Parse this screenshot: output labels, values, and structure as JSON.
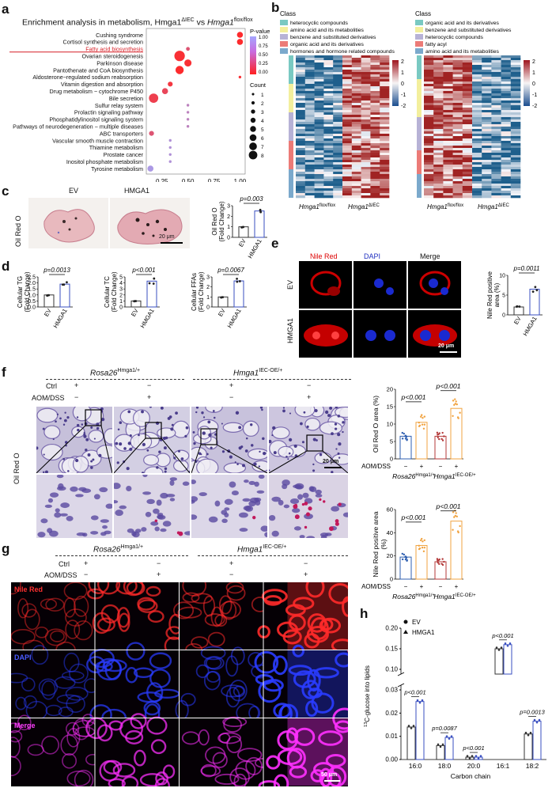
{
  "panels": {
    "a": "a",
    "b": "b",
    "c": "c",
    "d": "d",
    "e": "e",
    "f": "f",
    "g": "g",
    "h": "h"
  },
  "a": {
    "title": "Enrichment analysis in metabolism, Hmga1",
    "title_sup1": "ΔIEC",
    "title_mid": " vs ",
    "title_gene2": "Hmga1",
    "title_sup2": "flox/flox",
    "pvalue_label": "P-value",
    "pvalue_ticks": [
      "1.00",
      "0.75",
      "0.50",
      "0.25",
      "0.00"
    ],
    "count_label": "Count",
    "count_ticks": [
      "1",
      "2",
      "3",
      "4",
      "5",
      "6",
      "7",
      "8"
    ],
    "xticks": [
      "0.25",
      "0.50",
      "0.75",
      "1.00"
    ],
    "terms": [
      "Cushing syndrome",
      "Cortisol synthesis and secretion",
      "Fatty acid biosynthesis",
      "Ovarian steroidogenesis",
      "Parkinson disease",
      "Pantothenate and CoA biosynthesis",
      "Aldosterone−regulated sodium reabsorption",
      "Vitamin digestion and absorption",
      "Drug metabolism − cytochrome P450",
      "Bile secretion",
      "Sulfur relay system",
      "Prolactin signaling pathway",
      "Phosphatidylinositol signaling system",
      "Pathways of neurodegeneration − multiple diseases",
      "ABC transporters",
      "Vascular smooth muscle contraction",
      "Thiamine metabolism",
      "Prostate cancer",
      "Inositol phosphate metabolism",
      "Tyrosine metabolism"
    ],
    "highlight_color": "#d61f26"
  },
  "b": {
    "class_title": "Class",
    "left_classes": [
      "heterocyclic compounds",
      "amino acid and its metabolities",
      "benzene and substituted derivatives",
      "organic acid and its derivatives",
      "hormones and hormone related compounds"
    ],
    "right_classes": [
      "organic acid and its derivatives",
      "benzene and substituted derivatives",
      "heterocyclic compounds",
      "fatty acyl",
      "amino acid and its metabolities"
    ],
    "class_colors": [
      "#79c9c2",
      "#f3ef9d",
      "#b7b2d6",
      "#ec7b77",
      "#7ba9cc"
    ],
    "right_class_colors": [
      "#79c9c2",
      "#f3ef9d",
      "#b7b2d6",
      "#ec7b77",
      "#7ba9cc"
    ],
    "scale_ticks": [
      "2",
      "1",
      "0",
      "-1",
      "-2"
    ],
    "left_x_gene1": "Hmga1",
    "left_x_sup1": "flox/flox",
    "left_x_gene2": "Hmga1",
    "left_x_sup2": "ΔIEC",
    "right_x_gene1": "Hmga1",
    "right_x_sup1": "flox/flox",
    "right_x_gene2": "Hmga1",
    "right_x_sup2": "ΔIEC"
  },
  "c": {
    "ev": "EV",
    "hmga1": "HMGA1",
    "stain": "Oil Red O",
    "scalebar": "20 μm",
    "pval": "p=0.003",
    "ylabel1": "Oil Red O",
    "ylabel2": "(Fold Change)",
    "yticks": [
      "0",
      "1",
      "2",
      "3"
    ]
  },
  "d": {
    "charts": [
      {
        "pval": "p=0.0013",
        "ylabel1": "Cellular TG",
        "ylabel2": "(Fold Change)",
        "yticks": [
          "0.0",
          "0.5",
          "1.0",
          "1.5",
          "2.0",
          "2.5"
        ]
      },
      {
        "pval": "p<0.001",
        "ylabel1": "Cellular TC",
        "ylabel2": "(Fold Change)",
        "yticks": [
          "0",
          "1",
          "2",
          "3",
          "4",
          "5"
        ]
      },
      {
        "pval": "p=0.0067",
        "ylabel1": "Cellular FFAs",
        "ylabel2": "(Fold Change)",
        "yticks": [
          "0",
          "1",
          "2",
          "3"
        ]
      }
    ],
    "ev": "EV",
    "hmga1": "HMGA1"
  },
  "e": {
    "col1": "Nile Red",
    "col2": "DAPI",
    "col3": "Merge",
    "row1": "EV",
    "row2": "HMGA1",
    "scalebar": "20 μm",
    "pval": "p=0.0011",
    "ylabel1": "Nile Red positive",
    "ylabel2": "area (%)",
    "yticks": [
      "0",
      "5",
      "10"
    ],
    "ev": "EV",
    "hmga1": "HMGA1"
  },
  "f": {
    "rosa": "Rosa26",
    "rosa_sup": "Hmga1/+",
    "hmga": "Hmga1",
    "hmga_sup": "IEC-OE/+",
    "ctrl": "Ctrl",
    "aom": "AOM/DSS",
    "plus": "+",
    "minus": "−",
    "stain": "Oil Red O",
    "scalebar": "20 μm",
    "chart": {
      "pval1": "p<0.001",
      "pval2": "p<0.001",
      "ylabel": "Oil Red O area (%)",
      "yticks": [
        "0",
        "5",
        "10",
        "15",
        "20"
      ]
    }
  },
  "g": {
    "rosa": "Rosa26",
    "rosa_sup": "Hmga1/+",
    "hmga": "Hmga1",
    "hmga_sup": "IEC-OE/+",
    "ctrl": "Ctrl",
    "aom": "AOM/DSS",
    "plus": "+",
    "minus": "−",
    "row1": "Nile Red",
    "row2": "DAPI",
    "row3": "Merge",
    "scalebar": "50 μm",
    "chart": {
      "pval1": "p<0.001",
      "pval2": "p<0.001",
      "ylabel1": "Nile Red positive area",
      "ylabel2": "(%)",
      "yticks": [
        "0",
        "20",
        "40",
        "60"
      ]
    }
  },
  "h": {
    "legend_ev": "EV",
    "legend_hmga1": "HMGA1",
    "ylabel": "glucose into lipids",
    "ylabel_sup": "13",
    "ylabel_el": "C",
    "xlabel": "Carbon chain",
    "xticks": [
      "16:0",
      "18:0",
      "20:0",
      "16:1",
      "18:2"
    ],
    "yticks_low": [
      "0.00",
      "0.01",
      "0.02",
      "0.03"
    ],
    "yticks_high": [
      "0.10",
      "0.15",
      "0.20"
    ],
    "pvals": [
      "p<0.001",
      "p=0.0087",
      "p<0.001",
      "p<0.001",
      "p=0.0013"
    ]
  },
  "chart_data": [
    {
      "type": "scatter",
      "title": "Enrichment analysis in metabolism",
      "xlabel": "",
      "ylabel": "",
      "xlim": [
        0.1,
        1.05
      ],
      "points": [
        {
          "term": "Cushing syndrome",
          "x": 1.0,
          "count": 4,
          "p": 0.02
        },
        {
          "term": "Cortisol synthesis and secretion",
          "x": 1.0,
          "count": 4,
          "p": 0.02
        },
        {
          "term": "Fatty acid biosynthesis",
          "x": 0.5,
          "count": 2,
          "p": 0.3
        },
        {
          "term": "Ovarian steroidogenesis",
          "x": 0.42,
          "count": 8,
          "p": 0.05
        },
        {
          "term": "Parkinson disease",
          "x": 0.5,
          "count": 5,
          "p": 0.05
        },
        {
          "term": "Pantothenate and CoA biosynthesis",
          "x": 0.42,
          "count": 6,
          "p": 0.02
        },
        {
          "term": "Aldosterone−regulated sodium reabsorption",
          "x": 1.0,
          "count": 1,
          "p": 0.05
        },
        {
          "term": "Vitamin digestion and absorption",
          "x": 0.33,
          "count": 3,
          "p": 0.1
        },
        {
          "term": "Drug metabolism − cytochrome P450",
          "x": 0.28,
          "count": 4,
          "p": 0.2
        },
        {
          "term": "Bile secretion",
          "x": 0.17,
          "count": 7,
          "p": 0.15
        },
        {
          "term": "Sulfur relay system",
          "x": 0.5,
          "count": 1,
          "p": 0.6
        },
        {
          "term": "Prolactin signaling pathway",
          "x": 0.5,
          "count": 1,
          "p": 0.6
        },
        {
          "term": "Phosphatidylinositol signaling system",
          "x": 0.5,
          "count": 1,
          "p": 0.6
        },
        {
          "term": "Pathways of neurodegeneration − multiple diseases",
          "x": 0.5,
          "count": 1,
          "p": 0.6
        },
        {
          "term": "ABC transporters",
          "x": 0.15,
          "count": 3,
          "p": 0.3
        },
        {
          "term": "Vascular smooth muscle contraction",
          "x": 0.33,
          "count": 1,
          "p": 0.7
        },
        {
          "term": "Thiamine metabolism",
          "x": 0.33,
          "count": 1,
          "p": 0.7
        },
        {
          "term": "Prostate cancer",
          "x": 0.33,
          "count": 1,
          "p": 0.7
        },
        {
          "term": "Inositol phosphate metabolism",
          "x": 0.33,
          "count": 1,
          "p": 0.7
        },
        {
          "term": "Tyrosine metabolism",
          "x": 0.14,
          "count": 4,
          "p": 0.75
        }
      ]
    },
    {
      "type": "bar",
      "panel": "c",
      "categories": [
        "EV",
        "HMGA1"
      ],
      "values": [
        1.0,
        2.5
      ],
      "ylim": [
        0,
        3
      ],
      "ylabel": "Oil Red O (Fold Change)"
    },
    {
      "type": "bar",
      "panel": "d-TG",
      "categories": [
        "EV",
        "HMGA1"
      ],
      "values": [
        1.0,
        1.9
      ],
      "ylim": [
        0,
        2.5
      ],
      "ylabel": "Cellular TG (Fold Change)"
    },
    {
      "type": "bar",
      "panel": "d-TC",
      "categories": [
        "EV",
        "HMGA1"
      ],
      "values": [
        1.0,
        4.3
      ],
      "ylim": [
        0,
        5
      ],
      "ylabel": "Cellular TC (Fold Change)"
    },
    {
      "type": "bar",
      "panel": "d-FFA",
      "categories": [
        "EV",
        "HMGA1"
      ],
      "values": [
        1.0,
        2.6
      ],
      "ylim": [
        0,
        3
      ],
      "ylabel": "Cellular FFAs (Fold Change)"
    },
    {
      "type": "bar",
      "panel": "e",
      "categories": [
        "EV",
        "HMGA1"
      ],
      "values": [
        2.0,
        6.5
      ],
      "ylim": [
        0,
        10
      ],
      "ylabel": "Nile Red positive area (%)"
    },
    {
      "type": "bar",
      "panel": "f",
      "categories": [
        "Rosa26 −",
        "Rosa26 +",
        "Hmga1 −",
        "Hmga1 +"
      ],
      "values": [
        6.5,
        10.5,
        6.5,
        14.5
      ],
      "ylim": [
        0,
        20
      ],
      "ylabel": "Oil Red O area (%)"
    },
    {
      "type": "bar",
      "panel": "g",
      "categories": [
        "Rosa26 −",
        "Rosa26 +",
        "Hmga1 −",
        "Hmga1 +"
      ],
      "values": [
        19,
        29,
        15,
        50
      ],
      "ylim": [
        0,
        60
      ],
      "ylabel": "Nile Red positive area (%)"
    },
    {
      "type": "bar",
      "panel": "h",
      "categories": [
        "16:0",
        "18:0",
        "20:0",
        "16:1",
        "18:2"
      ],
      "series": [
        {
          "name": "EV",
          "values": [
            0.014,
            0.006,
            0.001,
            0.15,
            0.011
          ]
        },
        {
          "name": "HMGA1",
          "values": [
            0.025,
            0.0095,
            0.001,
            0.16,
            0.0165
          ]
        }
      ],
      "ylabel": "13C-glucose into lipids",
      "xlabel": "Carbon chain"
    }
  ]
}
